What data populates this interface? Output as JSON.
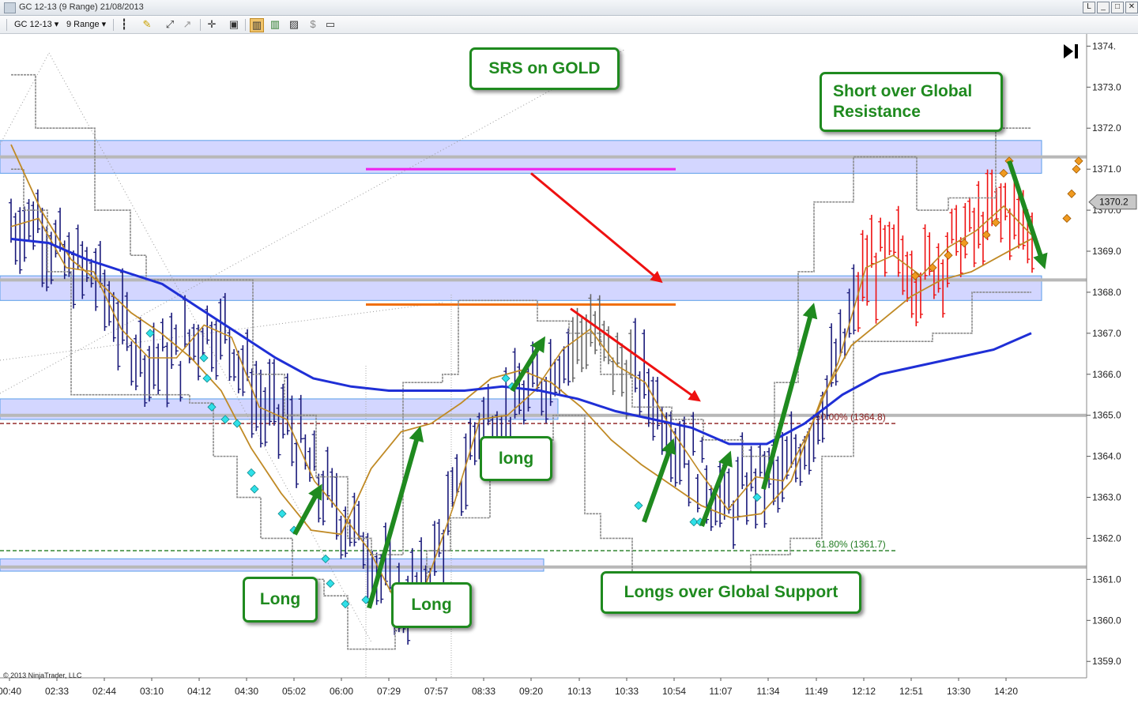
{
  "window": {
    "title": "GC 12-13 (9 Range)  21/08/2013",
    "buttons": [
      "L",
      "_",
      "□",
      "✕"
    ]
  },
  "toolbar": {
    "instrument": "GC 12-13",
    "interval": "9 Range"
  },
  "annotations": {
    "title_box": "SRS on GOLD",
    "short_box": "Short over Global Resistance",
    "long1": "Long",
    "long2": "Long",
    "long3": "long",
    "longs_box": "Longs over Global Support"
  },
  "copyright": "© 2013 NinjaTrader, LLC",
  "price_marker": "1370.2",
  "colors": {
    "bars_blue": "#1a1a7a",
    "bars_red": "#ee1111",
    "ma_blue": "#1f2fd6",
    "ma_gold": "#c08a25",
    "channel_gray": "#8a8a8a",
    "zone_fill": "#c8ccff",
    "zone_border": "#5a9ee8",
    "green_arrow": "#1f8a1f",
    "red_arrow": "#ee1111",
    "magenta_line": "#ee22ee",
    "orange_line": "#f07010"
  },
  "chart_data": {
    "type": "line",
    "title": "GC 12-13 (9 Range) 21/08/2013",
    "xlabel": "",
    "ylabel": "",
    "ylim": [
      1358.6,
      1374.2
    ],
    "y_ticks": [
      1374,
      1373,
      1372,
      1371,
      1370,
      1369,
      1368,
      1367,
      1366,
      1365,
      1364,
      1363,
      1362,
      1361,
      1360,
      1359
    ],
    "y_tick_labels": [
      "1374.",
      "1373.0",
      "1372.0",
      "1371.0",
      "1370.0",
      "1369.0",
      "1368.0",
      "1367.0",
      "1366.0",
      "1365.0",
      "1364.0",
      "1363.0",
      "1362.0",
      "1361.0",
      "1360.0",
      "1359.0"
    ],
    "x_tick_labels": [
      "00:40",
      "02:33",
      "02:44",
      "03:10",
      "04:12",
      "04:30",
      "05:02",
      "06:00",
      "07:29",
      "07:57",
      "08:33",
      "09:20",
      "10:13",
      "10:33",
      "10:54",
      "11:07",
      "11:34",
      "11:49",
      "12:12",
      "12:51",
      "13:30",
      "14:20"
    ],
    "grid": false,
    "zones": [
      {
        "name": "global_resistance",
        "from": 1370.9,
        "to": 1371.7
      },
      {
        "name": "zone_1368",
        "from": 1367.8,
        "to": 1368.4
      },
      {
        "name": "zone_1365",
        "from": 1364.9,
        "to": 1365.4
      },
      {
        "name": "global_support",
        "from": 1361.2,
        "to": 1361.5
      }
    ],
    "horizontal_levels": [
      {
        "label": "50.00% (1364.8)",
        "value": 1364.8,
        "style": "dashed",
        "color": "#8b1a1a"
      },
      {
        "label": "61.80% (1361.7)",
        "value": 1361.7,
        "style": "dashed",
        "color": "#1f7a1f"
      },
      {
        "label": "",
        "value": 1371.0,
        "style": "solid",
        "color": "#ee22ee"
      },
      {
        "label": "",
        "value": 1367.7,
        "style": "solid",
        "color": "#f07010"
      }
    ],
    "current_price": 1370.2,
    "series": [
      {
        "values": [
          1369.6,
          1369.8,
          1368.6,
          1368.5,
          1367.1,
          1366.4,
          1366.4,
          1367.2,
          1366.9,
          1365.2,
          1364.9,
          1363.4,
          1362.6,
          1361.7,
          1360.4,
          1360.8,
          1362.7,
          1364.9,
          1365.0,
          1365.6,
          1366.6,
          1367.1,
          1366.2,
          1365.8,
          1364.6,
          1363.6,
          1362.7,
          1363.5,
          1363.4,
          1364.7,
          1366.3,
          1368.6,
          1368.9,
          1368.4,
          1369.1,
          1369.5,
          1370.1,
          1369.4
        ]
      },
      {
        "values": [
          1371.6,
          1370.0,
          1368.8,
          1368.2,
          1367.5,
          1367.0,
          1366.4,
          1365.6,
          1364.2,
          1363.1,
          1362.2,
          1362.1,
          1363.7,
          1364.6,
          1364.8,
          1365.3,
          1365.9,
          1366.1,
          1365.8,
          1365.2,
          1364.4,
          1363.8,
          1363.3,
          1362.8,
          1362.5,
          1362.6,
          1363.4,
          1365.4,
          1366.7,
          1367.3,
          1367.9,
          1368.3,
          1368.5,
          1368.9,
          1369.3
        ]
      },
      {
        "values": [
          1369.3,
          1369.2,
          1368.8,
          1368.5,
          1368.2,
          1367.6,
          1367.0,
          1366.4,
          1365.9,
          1365.7,
          1365.6,
          1365.6,
          1365.6,
          1365.7,
          1365.6,
          1365.4,
          1365.1,
          1364.9,
          1364.7,
          1364.3,
          1364.3,
          1364.8,
          1365.5,
          1366.0,
          1366.2,
          1366.4,
          1366.6,
          1367.0
        ]
      }
    ]
  }
}
